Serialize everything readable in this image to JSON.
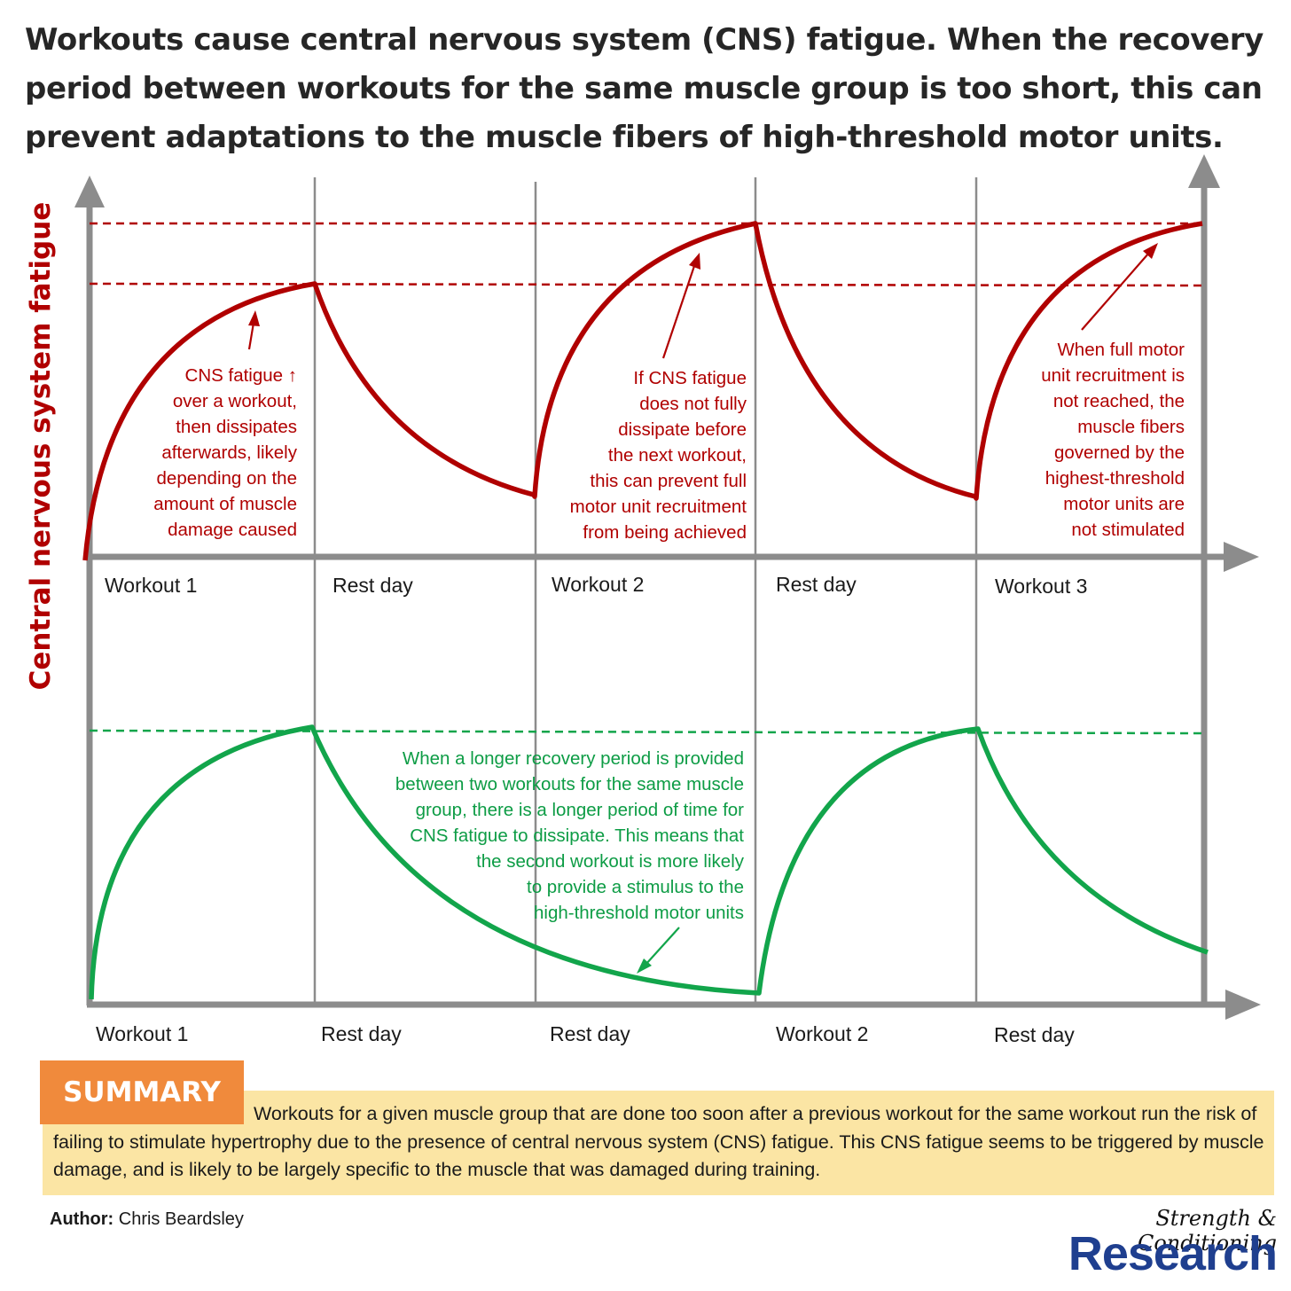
{
  "title": "Workouts cause central nervous system (CNS) fatigue. When the recovery period between workouts for the same muscle group is too short, this can prevent adaptations to the muscle fibers of high-threshold motor units.",
  "y_axis_label": "Central nervous system fatigue",
  "top_panel": {
    "labels": [
      "Workout 1",
      "Rest day",
      "Workout 2",
      "Rest day",
      "Workout 3"
    ],
    "annotations": [
      [
        "CNS fatigue ↑",
        "over a workout,",
        "then dissipates",
        "afterwards, likely",
        "depending on the",
        "amount of muscle",
        "damage caused"
      ],
      [
        "If CNS  fatigue",
        "does not fully",
        "dissipate before",
        "the next workout,",
        "this can prevent full",
        "motor unit recruitment",
        "from being achieved"
      ],
      [
        "When full motor",
        "unit recruitment is",
        "not reached, the",
        "muscle fibers",
        "governed by the",
        "highest-threshold",
        "motor units are",
        "not stimulated"
      ]
    ]
  },
  "bottom_panel": {
    "labels": [
      "Workout 1",
      "Rest day",
      "Rest day",
      "Workout 2",
      "Rest day"
    ],
    "annotation": [
      "When a longer recovery period is provided",
      "between two workouts for the same muscle",
      "group, there is a longer period of time for",
      "CNS fatigue to dissipate. This means that",
      "the second workout is more likely",
      "to provide a stimulus to the",
      "high-threshold motor units"
    ]
  },
  "summary": {
    "heading": "SUMMARY",
    "text": "Workouts for a given muscle group that are done too soon after a previous workout for the same workout run the risk of failing to stimulate hypertrophy due to the presence of central nervous system (CNS) fatigue. This CNS fatigue seems to be triggered by muscle damage, and is likely to be largely specific to the muscle that was damaged during training."
  },
  "author": {
    "label": "Author:",
    "name": "Chris Beardsley"
  },
  "brand": {
    "line1": "Strength & Conditioning",
    "line2": "Research"
  },
  "colors": {
    "red": "#b00000",
    "green": "#12a54b",
    "axis": "#8c8c8c",
    "summary_tag": "#f08a3c",
    "summary_box": "#fbe5a4",
    "brand": "#1f3f8f"
  }
}
